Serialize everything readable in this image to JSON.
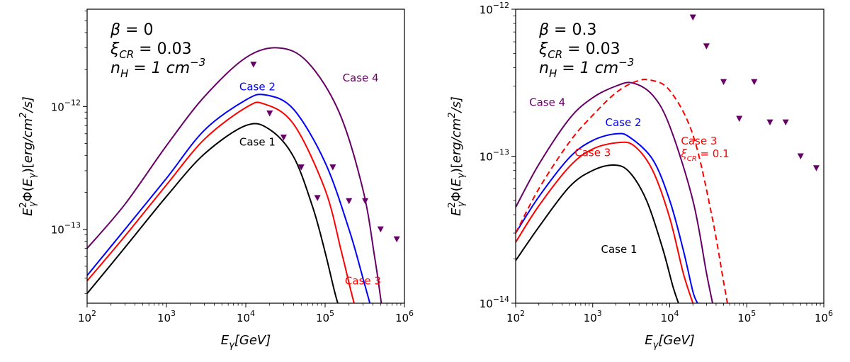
{
  "chart_data": [
    {
      "type": "line",
      "xscale": "log",
      "yscale": "log",
      "xlim": [
        100,
        1000000
      ],
      "ylim": [
        2.5e-14,
        6.2e-12
      ],
      "xlabel": "E_γ[GeV]",
      "ylabel": "E_γ^2 Φ(E_γ)[erg/cm^2/s]",
      "x_ticks": [
        {
          "value": 100,
          "base": "10",
          "exp": "2"
        },
        {
          "value": 1000,
          "base": "10",
          "exp": "3"
        },
        {
          "value": 10000,
          "base": "10",
          "exp": "4"
        },
        {
          "value": 100000,
          "base": "10",
          "exp": "5"
        },
        {
          "value": 1000000,
          "base": "10",
          "exp": "6"
        }
      ],
      "y_ticks": [
        {
          "value": 1e-13,
          "base": "10",
          "exp": "−13"
        },
        {
          "value": 1e-12,
          "base": "10",
          "exp": "−12"
        }
      ],
      "annotations": [
        {
          "greek": "β",
          "rest": " = 0"
        },
        {
          "greek": "ξ",
          "sub": "CR",
          "rest": " = 0.03"
        },
        {
          "greek": "n",
          "sub": "H",
          "rest": " = 1 cm",
          "sup": "−3"
        }
      ],
      "series": [
        {
          "name": "Case 1",
          "color": "#000000",
          "dash": "solid",
          "label": {
            "x": 14000,
            "y": 4.8e-13,
            "anchor": "middle"
          },
          "x": [
            100,
            300,
            1000,
            3000,
            10000,
            20000,
            40000,
            70000,
            100000,
            130000,
            150000
          ],
          "y": [
            3e-14,
            7.1e-14,
            1.85e-13,
            4.1e-13,
            7e-13,
            6.5e-13,
            3.9e-13,
            1.5e-13,
            6.5e-14,
            3.2e-14,
            2.3e-14
          ]
        },
        {
          "name": "Case 2",
          "color": "#0000ff",
          "dash": "solid",
          "label": {
            "x": 14000,
            "y": 1.35e-12,
            "anchor": "middle"
          },
          "x": [
            100,
            300,
            1000,
            3000,
            10000,
            18000,
            40000,
            100000,
            200000,
            300000,
            380000
          ],
          "y": [
            4.2e-14,
            1e-13,
            2.6e-13,
            6.4e-13,
            1.13e-12,
            1.24e-12,
            9.5e-13,
            3.5e-13,
            1e-13,
            4e-14,
            2.3e-14
          ]
        },
        {
          "name": "Case 3",
          "color": "#ff0000",
          "dash": "solid",
          "label": {
            "x": 300000,
            "y": 3.55e-14,
            "anchor": "middle"
          },
          "x": [
            100,
            300,
            1000,
            3000,
            10000,
            17000,
            40000,
            100000,
            160000,
            210000,
            240000
          ],
          "y": [
            3.8e-14,
            8.8e-14,
            2.3e-13,
            5.4e-13,
            9.8e-13,
            1.05e-12,
            7.2e-13,
            2.1e-13,
            6.6e-14,
            3.2e-14,
            2.3e-14
          ]
        },
        {
          "name": "Case 4",
          "color": "#660066",
          "dash": "solid",
          "label": {
            "x": 280000,
            "y": 1.6e-12,
            "anchor": "middle"
          },
          "x": [
            100,
            300,
            1000,
            3000,
            10000,
            26000,
            60000,
            150000,
            300000,
            420000,
            520000
          ],
          "y": [
            7e-14,
            1.6e-13,
            4.8e-13,
            1.2e-12,
            2.5e-12,
            3e-12,
            2.3e-12,
            9e-13,
            2.1e-13,
            6e-14,
            2.3e-14
          ]
        }
      ],
      "upper_limits": {
        "color": "#660066",
        "x": [
          12500,
          20000,
          30000,
          50000,
          80000,
          125000,
          200000,
          320000,
          500000,
          800000
        ],
        "y": [
          2.2e-12,
          8.8e-13,
          5.6e-13,
          3.2e-13,
          1.8e-13,
          3.2e-13,
          1.7e-13,
          1.7e-13,
          1e-13,
          8.3e-14
        ]
      }
    },
    {
      "type": "line",
      "xscale": "log",
      "yscale": "log",
      "xlim": [
        100,
        1000000
      ],
      "ylim": [
        1e-14,
        1e-12
      ],
      "xlabel": "E_γ[GeV]",
      "ylabel": "E_γ^2 Φ(E_γ)[erg/cm^2/s]",
      "x_ticks": [
        {
          "value": 100,
          "base": "10",
          "exp": "2"
        },
        {
          "value": 1000,
          "base": "10",
          "exp": "3"
        },
        {
          "value": 10000,
          "base": "10",
          "exp": "4"
        },
        {
          "value": 100000,
          "base": "10",
          "exp": "5"
        },
        {
          "value": 1000000,
          "base": "10",
          "exp": "6"
        }
      ],
      "y_ticks": [
        {
          "value": 1e-14,
          "base": "10",
          "exp": "−14"
        },
        {
          "value": 1e-13,
          "base": "10",
          "exp": "−13"
        },
        {
          "value": 1e-12,
          "base": "10",
          "exp": "−12"
        }
      ],
      "annotations": [
        {
          "greek": "β",
          "rest": " = 0.3"
        },
        {
          "greek": "ξ",
          "sub": "CR",
          "rest": " = 0.03"
        },
        {
          "greek": "n",
          "sub": "H",
          "rest": " = 1 cm",
          "sup": "−3"
        }
      ],
      "series": [
        {
          "name": "Case 1",
          "color": "#000000",
          "dash": "solid",
          "label": {
            "x": 2200,
            "y": 2.2e-14,
            "anchor": "middle"
          },
          "x": [
            100,
            200,
            500,
            1000,
            1900,
            3000,
            5000,
            8000,
            11000,
            13000
          ],
          "y": [
            1.95e-14,
            3.3e-14,
            6.2e-14,
            8e-14,
            8.7e-14,
            7.8e-14,
            5e-14,
            2.4e-14,
            1.3e-14,
            1e-14
          ]
        },
        {
          "name": "Case 2",
          "color": "#0000ff",
          "dash": "solid",
          "label": {
            "x": 2500,
            "y": 1.6e-13,
            "anchor": "middle"
          },
          "x": [
            100,
            200,
            500,
            1000,
            2000,
            3000,
            6000,
            10000,
            15000,
            20000,
            23000
          ],
          "y": [
            3e-14,
            5.3e-14,
            9.8e-14,
            1.28e-13,
            1.42e-13,
            1.35e-13,
            9.5e-14,
            5e-14,
            2.3e-14,
            1.2e-14,
            1e-14
          ]
        },
        {
          "name": "Case 3",
          "color": "#ff0000",
          "dash": "solid",
          "label": {
            "x": 1000,
            "y": 1e-13,
            "anchor": "middle"
          },
          "x": [
            100,
            200,
            500,
            1000,
            2200,
            3500,
            6000,
            10000,
            15000,
            20000
          ],
          "y": [
            2.6e-14,
            4.6e-14,
            8.5e-14,
            1.12e-13,
            1.24e-13,
            1.17e-13,
            8e-14,
            3.8e-14,
            1.6e-14,
            1e-14
          ]
        },
        {
          "name": "Case 4",
          "color": "#660066",
          "dash": "solid",
          "label": {
            "x": 150,
            "y": 2.2e-13,
            "anchor": "start"
          },
          "x": [
            100,
            200,
            500,
            1000,
            2000,
            3300,
            6000,
            10000,
            20000,
            30000,
            36000
          ],
          "y": [
            4.5e-14,
            8.8e-14,
            1.8e-13,
            2.5e-13,
            3e-13,
            3.15e-13,
            2.6e-13,
            1.6e-13,
            5e-14,
            1.6e-14,
            1e-14
          ]
        },
        {
          "name": "Case 3",
          "name2": "ξ_CR = 0.1",
          "color": "#ff0000",
          "dash": "dashed",
          "label": {
            "x": 14000,
            "y": 1.2e-13,
            "anchor": "start"
          },
          "x": [
            100,
            200,
            500,
            1000,
            2000,
            3500,
            5500,
            10000,
            20000,
            35000,
            50000,
            56000
          ],
          "y": [
            3e-14,
            6e-14,
            1.25e-13,
            1.9e-13,
            2.7e-13,
            3.2e-13,
            3.3e-13,
            2.8e-13,
            1.4e-13,
            4e-14,
            1.4e-14,
            1e-14
          ]
        }
      ],
      "upper_limits": {
        "color": "#660066",
        "x": [
          20000,
          30000,
          50000,
          80000,
          125000,
          200000,
          320000,
          500000,
          800000
        ],
        "y": [
          8.8e-13,
          5.6e-13,
          3.2e-13,
          1.8e-13,
          3.2e-13,
          1.7e-13,
          1.7e-13,
          1e-13,
          8.3e-14
        ]
      }
    }
  ]
}
